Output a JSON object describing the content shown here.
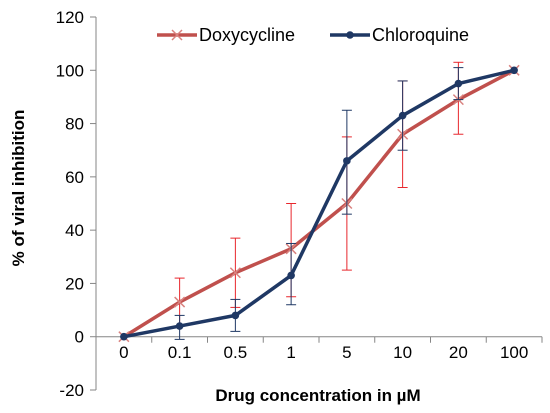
{
  "chart_data": {
    "type": "line",
    "title": "",
    "xlabel": "Drug concentration in µM",
    "ylabel": "% of viral inhibition",
    "categories": [
      "0",
      "0.1",
      "0.5",
      "1",
      "5",
      "10",
      "20",
      "100"
    ],
    "ylim": [
      -20,
      120
    ],
    "yticks": [
      -20,
      0,
      20,
      40,
      60,
      80,
      100,
      120
    ],
    "grid": false,
    "legend": "top",
    "series": [
      {
        "name": "Doxycycline",
        "color": "#C0504D",
        "marker": "x",
        "values": [
          0,
          13,
          24,
          33,
          50,
          76,
          89,
          100
        ],
        "error_low": [
          null,
          4,
          11,
          15,
          25,
          56,
          76,
          null
        ],
        "error_high": [
          null,
          22,
          37,
          50,
          75,
          96,
          103,
          null
        ],
        "error_color": "#E8262C"
      },
      {
        "name": "Chloroquine",
        "color": "#1F3864",
        "marker": "circle",
        "values": [
          0,
          4,
          8,
          23,
          66,
          83,
          95,
          100
        ],
        "error_low": [
          null,
          -1,
          2,
          12,
          46,
          70,
          89,
          null
        ],
        "error_high": [
          null,
          8,
          14,
          35,
          85,
          96,
          101,
          null
        ],
        "error_color": "#1F3864"
      }
    ]
  }
}
